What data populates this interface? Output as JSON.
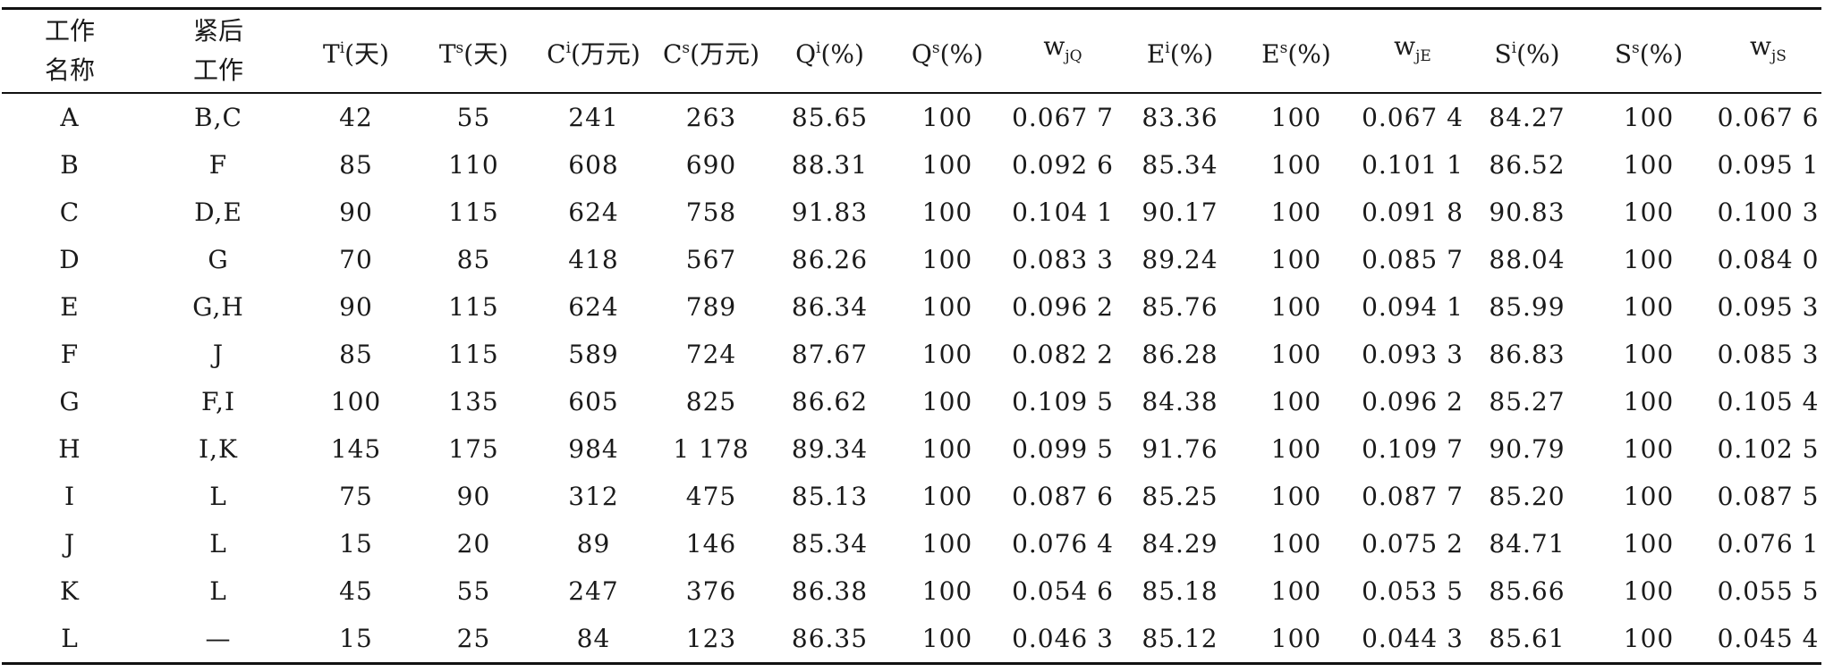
{
  "table": {
    "headers": [
      {
        "lines": [
          "工作",
          "名称"
        ]
      },
      {
        "lines": [
          "紧后",
          "工作"
        ]
      },
      {
        "base": "T",
        "sup": "i",
        "unit": "(天)"
      },
      {
        "base": "T",
        "sup": "s",
        "unit": "(天)"
      },
      {
        "base": "C",
        "sup": "i",
        "unit": "(万元)"
      },
      {
        "base": "C",
        "sup": "s",
        "unit": "(万元)"
      },
      {
        "base": "Q",
        "sup": "i",
        "unit": "(%)"
      },
      {
        "base": "Q",
        "sup": "s",
        "unit": "(%)"
      },
      {
        "base": "w",
        "sub": "jQ",
        "unit": ""
      },
      {
        "base": "E",
        "sup": "i",
        "unit": "(%)"
      },
      {
        "base": "E",
        "sup": "s",
        "unit": "(%)"
      },
      {
        "base": "w",
        "sub": "jE",
        "unit": ""
      },
      {
        "base": "S",
        "sup": "i",
        "unit": "(%)"
      },
      {
        "base": "S",
        "sup": "s",
        "unit": "(%)"
      },
      {
        "base": "w",
        "sub": "jS",
        "unit": ""
      }
    ],
    "rows": [
      [
        "A",
        "B,C",
        "42",
        "55",
        "241",
        "263",
        "85.65",
        "100",
        "0.067 7",
        "83.36",
        "100",
        "0.067 4",
        "84.27",
        "100",
        "0.067 6"
      ],
      [
        "B",
        "F",
        "85",
        "110",
        "608",
        "690",
        "88.31",
        "100",
        "0.092 6",
        "85.34",
        "100",
        "0.101 1",
        "86.52",
        "100",
        "0.095 1"
      ],
      [
        "C",
        "D,E",
        "90",
        "115",
        "624",
        "758",
        "91.83",
        "100",
        "0.104 1",
        "90.17",
        "100",
        "0.091 8",
        "90.83",
        "100",
        "0.100 3"
      ],
      [
        "D",
        "G",
        "70",
        "85",
        "418",
        "567",
        "86.26",
        "100",
        "0.083 3",
        "89.24",
        "100",
        "0.085 7",
        "88.04",
        "100",
        "0.084 0"
      ],
      [
        "E",
        "G,H",
        "90",
        "115",
        "624",
        "789",
        "86.34",
        "100",
        "0.096 2",
        "85.76",
        "100",
        "0.094 1",
        "85.99",
        "100",
        "0.095 3"
      ],
      [
        "F",
        "J",
        "85",
        "115",
        "589",
        "724",
        "87.67",
        "100",
        "0.082 2",
        "86.28",
        "100",
        "0.093 3",
        "86.83",
        "100",
        "0.085 3"
      ],
      [
        "G",
        "F,I",
        "100",
        "135",
        "605",
        "825",
        "86.62",
        "100",
        "0.109 5",
        "84.38",
        "100",
        "0.096 2",
        "85.27",
        "100",
        "0.105 4"
      ],
      [
        "H",
        "I,K",
        "145",
        "175",
        "984",
        "1 178",
        "89.34",
        "100",
        "0.099 5",
        "91.76",
        "100",
        "0.109 7",
        "90.79",
        "100",
        "0.102 5"
      ],
      [
        "I",
        "L",
        "75",
        "90",
        "312",
        "475",
        "85.13",
        "100",
        "0.087 6",
        "85.25",
        "100",
        "0.087 7",
        "85.20",
        "100",
        "0.087 5"
      ],
      [
        "J",
        "L",
        "15",
        "20",
        "89",
        "146",
        "85.34",
        "100",
        "0.076 4",
        "84.29",
        "100",
        "0.075 2",
        "84.71",
        "100",
        "0.076 1"
      ],
      [
        "K",
        "L",
        "45",
        "55",
        "247",
        "376",
        "86.38",
        "100",
        "0.054 6",
        "85.18",
        "100",
        "0.053 5",
        "85.66",
        "100",
        "0.055 5"
      ],
      [
        "L",
        "—",
        "15",
        "25",
        "84",
        "123",
        "86.35",
        "100",
        "0.046 3",
        "85.12",
        "100",
        "0.044 3",
        "85.61",
        "100",
        "0.045 4"
      ]
    ]
  }
}
